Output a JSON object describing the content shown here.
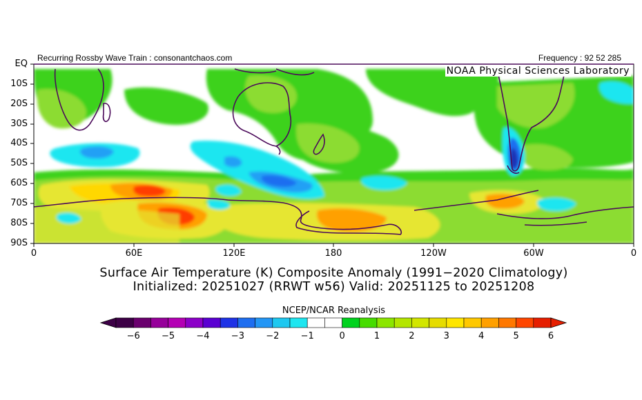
{
  "header": {
    "left": "Recurring Rossby Wave Train : consonantchaos.com",
    "right": "Frequency : 92 52 285",
    "lab": "NOAA Physical Sciences Laboratory"
  },
  "axes": {
    "lat_labels": [
      "EQ",
      "10S",
      "20S",
      "30S",
      "40S",
      "50S",
      "60S",
      "70S",
      "80S",
      "90S"
    ],
    "lon_labels": [
      "0",
      "60E",
      "120E",
      "180",
      "120W",
      "60W",
      "0"
    ]
  },
  "title": {
    "line1": "Surface Air Temperature (K) Composite Anomaly (1991−2020 Climatology)",
    "line2": "Initialized: 20251027 (RRWT w56) Valid: 20251125 to 20251208"
  },
  "colorbar": {
    "title": "NCEP/NCAR Reanalysis",
    "labels": [
      "−6",
      "−5",
      "−4",
      "−3",
      "−2",
      "−1",
      "0",
      "1",
      "2",
      "3",
      "4",
      "5",
      "6"
    ],
    "colors": [
      "#3d0046",
      "#6a006e",
      "#96009a",
      "#b400b4",
      "#8c00c8",
      "#5a00d2",
      "#1e32e6",
      "#1e6ef0",
      "#2396f5",
      "#1ec8f0",
      "#1ee6f0",
      "#ffffff",
      "#ffffff",
      "#00d21e",
      "#46dc00",
      "#8ce600",
      "#b4e600",
      "#d2e600",
      "#e6dc00",
      "#ffe600",
      "#ffc800",
      "#ffa000",
      "#ff7800",
      "#ff4600",
      "#e61e00"
    ]
  },
  "map": {
    "projection": "equirectangular",
    "lon_range": [
      0,
      360
    ],
    "lat_range": [
      -90,
      0
    ],
    "colors": {
      "green_pos": "#3cd21e",
      "lightgreen": "#8cdc32",
      "yellow": "#e6e632",
      "gold": "#ffd700",
      "orange": "#ffa000",
      "red": "#ff3c00",
      "cyan": "#1ee6f0",
      "lightblue": "#23a0f5",
      "blue": "#1e6ef0",
      "navy": "#1e32b4",
      "coast": "#4b0a5a"
    }
  }
}
